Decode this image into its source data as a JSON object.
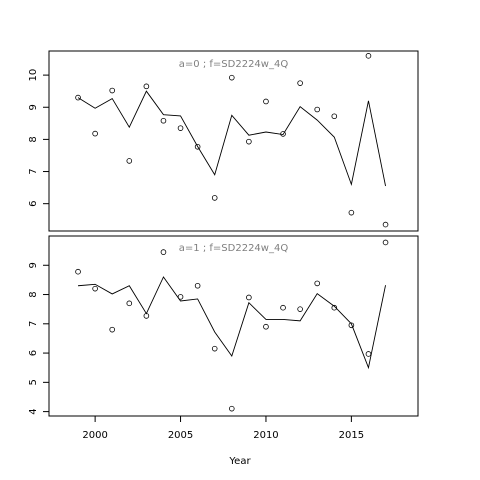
{
  "chart_data": [
    {
      "type": "scatter",
      "title": "a=0  ;  f=SD2224w_4Q",
      "xlabel": "",
      "ylabel": "",
      "xlim": [
        1997.3,
        2018.9
      ],
      "ylim": [
        5.15,
        10.75
      ],
      "x_ticks": [],
      "y_ticks": [
        6,
        7,
        8,
        9,
        10
      ],
      "series": [
        {
          "type": "scatter",
          "x": [
            1999,
            2000,
            2001,
            2002,
            2003,
            2004,
            2005,
            2006,
            2007,
            2008,
            2009,
            2010,
            2011,
            2012,
            2013,
            2014,
            2015,
            2016,
            2017
          ],
          "values": [
            9.3,
            8.18,
            9.52,
            7.33,
            9.65,
            8.58,
            8.35,
            7.77,
            6.18,
            9.92,
            7.93,
            9.18,
            8.17,
            9.75,
            8.93,
            8.72,
            5.72,
            10.6,
            5.35
          ]
        },
        {
          "type": "line",
          "x": [
            1999,
            2000,
            2001,
            2002,
            2003,
            2004,
            2005,
            2006,
            2007,
            2008,
            2009,
            2010,
            2011,
            2012,
            2013,
            2014,
            2015,
            2016,
            2017
          ],
          "values": [
            9.3,
            8.97,
            9.27,
            8.38,
            9.5,
            8.77,
            8.73,
            7.78,
            6.9,
            8.75,
            8.13,
            8.23,
            8.15,
            9.02,
            8.6,
            8.07,
            6.6,
            9.2,
            6.55
          ]
        }
      ]
    },
    {
      "type": "scatter",
      "title": "a=1  ;  f=SD2224w_4Q",
      "xlabel": "Year",
      "ylabel": "",
      "xlim": [
        1997.3,
        2018.9
      ],
      "ylim": [
        3.85,
        10.0
      ],
      "x_ticks": [
        2000,
        2005,
        2010,
        2015
      ],
      "y_ticks": [
        4,
        5,
        6,
        7,
        8,
        9
      ],
      "series": [
        {
          "type": "scatter",
          "x": [
            1999,
            2000,
            2001,
            2002,
            2003,
            2004,
            2005,
            2006,
            2007,
            2008,
            2009,
            2010,
            2011,
            2012,
            2013,
            2014,
            2015,
            2016,
            2017
          ],
          "values": [
            8.78,
            8.2,
            6.8,
            7.7,
            7.27,
            9.45,
            7.92,
            8.3,
            6.15,
            4.1,
            7.9,
            6.9,
            7.55,
            7.5,
            8.38,
            7.55,
            6.95,
            5.97,
            9.78
          ]
        },
        {
          "type": "line",
          "x": [
            1999,
            2000,
            2001,
            2002,
            2003,
            2004,
            2005,
            2006,
            2007,
            2008,
            2009,
            2010,
            2011,
            2012,
            2013,
            2014,
            2015,
            2016,
            2017
          ],
          "values": [
            8.3,
            8.35,
            8.02,
            8.3,
            7.35,
            8.6,
            7.78,
            7.85,
            6.72,
            5.9,
            7.72,
            7.15,
            7.15,
            7.1,
            8.03,
            7.6,
            7.0,
            5.5,
            8.32
          ]
        }
      ]
    }
  ]
}
